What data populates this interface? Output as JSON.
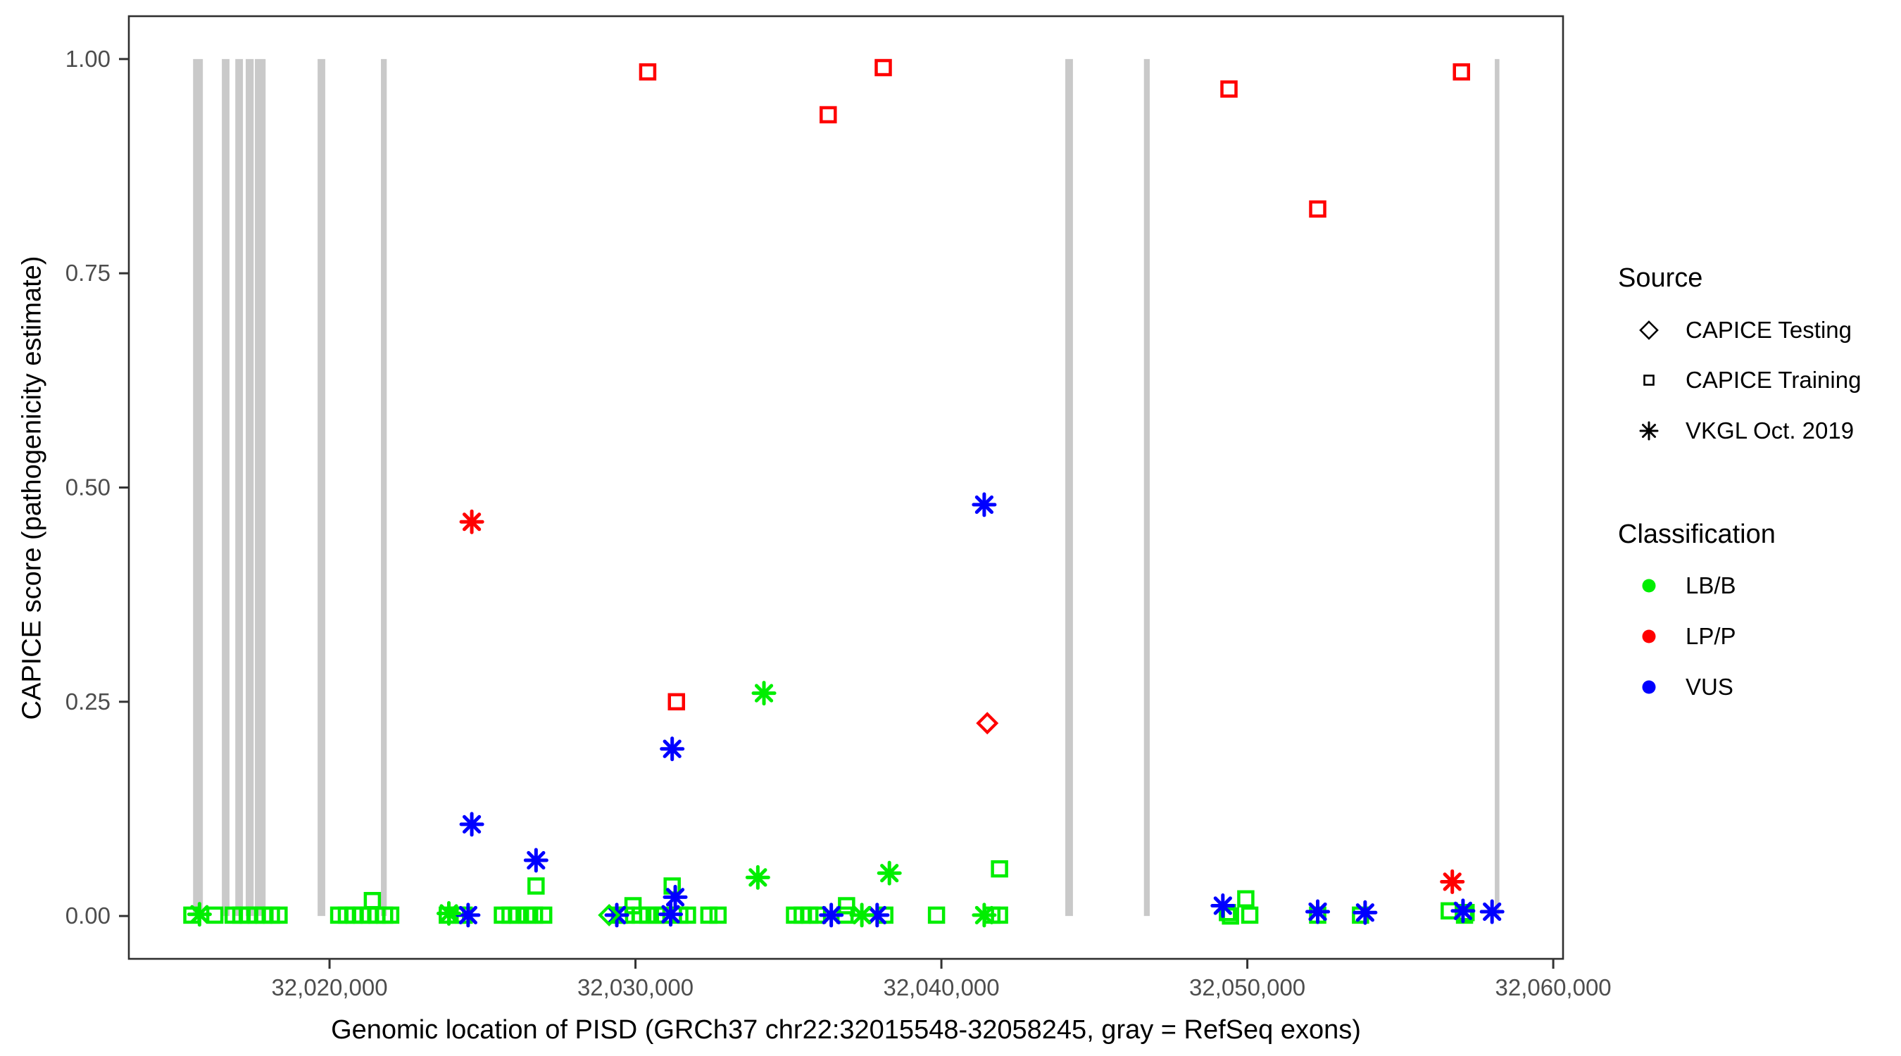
{
  "figure": {
    "x_axis_title": "Genomic location of PISD (GRCh37 chr22:32015548-32058245, gray = RefSeq exons)",
    "y_axis_title": "CAPICE score (pathogenicity estimate)"
  },
  "legend": {
    "source": {
      "title": "Source",
      "items": [
        {
          "label": "CAPICE Testing",
          "symbol": "diamond-outline"
        },
        {
          "label": "CAPICE Training",
          "symbol": "square-outline"
        },
        {
          "label": "VKGL Oct. 2019",
          "symbol": "asterisk"
        }
      ]
    },
    "classification": {
      "title": "Classification",
      "items": [
        {
          "label": "LB/B",
          "color": "#00EE00"
        },
        {
          "label": "LP/P",
          "color": "#FF0000"
        },
        {
          "label": "VUS",
          "color": "#0000FF"
        }
      ]
    }
  },
  "chart_data": {
    "type": "scatter",
    "title": "",
    "xlabel": "Genomic location of PISD (GRCh37 chr22:32015548-32058245, gray = RefSeq exons)",
    "ylabel": "CAPICE score (pathogenicity estimate)",
    "x_domain": [
      32013440,
      32060320
    ],
    "y_domain": [
      -0.05,
      1.05
    ],
    "grid": false,
    "legend_position": "right",
    "x_ticks": [
      {
        "value": 32020000,
        "label": "32,020,000"
      },
      {
        "value": 32030000,
        "label": "32,030,000"
      },
      {
        "value": 32040000,
        "label": "32,040,000"
      },
      {
        "value": 32050000,
        "label": "32,050,000"
      },
      {
        "value": 32060000,
        "label": "32,060,000"
      }
    ],
    "y_ticks": [
      {
        "value": 0.0,
        "label": "0.00"
      },
      {
        "value": 0.25,
        "label": "0.25"
      },
      {
        "value": 0.5,
        "label": "0.50"
      },
      {
        "value": 0.75,
        "label": "0.75"
      },
      {
        "value": 1.0,
        "label": "1.00"
      }
    ],
    "colors": {
      "LB/B": "#00EE00",
      "LP/P": "#FF0000",
      "VUS": "#0000FF",
      "exon": "#C9C9C9",
      "axis_text": "#4D4D4D",
      "panel_border": "#2F2F2F"
    },
    "exons": [
      {
        "start": 32015540,
        "end": 32015860
      },
      {
        "start": 32016480,
        "end": 32016730
      },
      {
        "start": 32016920,
        "end": 32017170
      },
      {
        "start": 32017260,
        "end": 32017520
      },
      {
        "start": 32017560,
        "end": 32017910
      },
      {
        "start": 32019610,
        "end": 32019860
      },
      {
        "start": 32021680,
        "end": 32021870
      },
      {
        "start": 32044050,
        "end": 32044300
      },
      {
        "start": 32046620,
        "end": 32046810
      },
      {
        "start": 32058090,
        "end": 32058240
      }
    ],
    "points": [
      {
        "x": 32030400,
        "y": 0.985,
        "src": "training",
        "cls": "LP/P"
      },
      {
        "x": 32036300,
        "y": 0.935,
        "src": "training",
        "cls": "LP/P"
      },
      {
        "x": 32038100,
        "y": 0.99,
        "src": "training",
        "cls": "LP/P"
      },
      {
        "x": 32049400,
        "y": 0.965,
        "src": "training",
        "cls": "LP/P"
      },
      {
        "x": 32052300,
        "y": 0.825,
        "src": "training",
        "cls": "LP/P"
      },
      {
        "x": 32057000,
        "y": 0.985,
        "src": "training",
        "cls": "LP/P"
      },
      {
        "x": 32031340,
        "y": 0.25,
        "src": "training",
        "cls": "LP/P"
      },
      {
        "x": 32041500,
        "y": 0.225,
        "src": "testing",
        "cls": "LP/P"
      },
      {
        "x": 32024650,
        "y": 0.46,
        "src": "vkgl",
        "cls": "LP/P"
      },
      {
        "x": 32056700,
        "y": 0.04,
        "src": "vkgl",
        "cls": "LP/P"
      },
      {
        "x": 32041400,
        "y": 0.48,
        "src": "vkgl",
        "cls": "VUS"
      },
      {
        "x": 32031200,
        "y": 0.195,
        "src": "vkgl",
        "cls": "VUS"
      },
      {
        "x": 32024650,
        "y": 0.107,
        "src": "vkgl",
        "cls": "VUS"
      },
      {
        "x": 32026750,
        "y": 0.065,
        "src": "vkgl",
        "cls": "VUS"
      },
      {
        "x": 32031300,
        "y": 0.022,
        "src": "vkgl",
        "cls": "VUS"
      },
      {
        "x": 32031150,
        "y": 0.002,
        "src": "vkgl",
        "cls": "VUS"
      },
      {
        "x": 32024530,
        "y": 0.001,
        "src": "vkgl",
        "cls": "VUS"
      },
      {
        "x": 32029390,
        "y": 0.001,
        "src": "vkgl",
        "cls": "VUS"
      },
      {
        "x": 32036400,
        "y": 0.001,
        "src": "vkgl",
        "cls": "VUS"
      },
      {
        "x": 32037900,
        "y": 0.001,
        "src": "vkgl",
        "cls": "VUS"
      },
      {
        "x": 32049200,
        "y": 0.012,
        "src": "vkgl",
        "cls": "VUS"
      },
      {
        "x": 32052300,
        "y": 0.005,
        "src": "vkgl",
        "cls": "VUS"
      },
      {
        "x": 32053850,
        "y": 0.004,
        "src": "vkgl",
        "cls": "VUS"
      },
      {
        "x": 32057050,
        "y": 0.006,
        "src": "vkgl",
        "cls": "VUS"
      },
      {
        "x": 32058000,
        "y": 0.005,
        "src": "vkgl",
        "cls": "VUS"
      },
      {
        "x": 32034200,
        "y": 0.26,
        "src": "vkgl",
        "cls": "LB/B"
      },
      {
        "x": 32034000,
        "y": 0.045,
        "src": "vkgl",
        "cls": "LB/B"
      },
      {
        "x": 32038300,
        "y": 0.05,
        "src": "vkgl",
        "cls": "LB/B"
      },
      {
        "x": 32015750,
        "y": 0.002,
        "src": "vkgl",
        "cls": "LB/B"
      },
      {
        "x": 32023900,
        "y": 0.003,
        "src": "vkgl",
        "cls": "LB/B"
      },
      {
        "x": 32037400,
        "y": 0.001,
        "src": "vkgl",
        "cls": "LB/B"
      },
      {
        "x": 32041400,
        "y": 0.001,
        "src": "vkgl",
        "cls": "LB/B"
      },
      {
        "x": 32029140,
        "y": 0.001,
        "src": "testing",
        "cls": "LB/B"
      },
      {
        "x": 32021400,
        "y": 0.018,
        "src": "training",
        "cls": "LB/B"
      },
      {
        "x": 32026750,
        "y": 0.035,
        "src": "training",
        "cls": "LB/B"
      },
      {
        "x": 32029920,
        "y": 0.012,
        "src": "training",
        "cls": "LB/B"
      },
      {
        "x": 32031200,
        "y": 0.035,
        "src": "training",
        "cls": "LB/B"
      },
      {
        "x": 32036900,
        "y": 0.012,
        "src": "training",
        "cls": "LB/B"
      },
      {
        "x": 32041900,
        "y": 0.055,
        "src": "training",
        "cls": "LB/B"
      },
      {
        "x": 32049950,
        "y": 0.02,
        "src": "training",
        "cls": "LB/B"
      },
      {
        "x": 32056600,
        "y": 0.006,
        "src": "training",
        "cls": "LB/B"
      },
      {
        "x": 32015500,
        "y": 0.001,
        "src": "training",
        "cls": "LB/B"
      },
      {
        "x": 32016250,
        "y": 0.001,
        "src": "training",
        "cls": "LB/B"
      },
      {
        "x": 32016850,
        "y": 0.001,
        "src": "training",
        "cls": "LB/B"
      },
      {
        "x": 32017100,
        "y": 0.001,
        "src": "training",
        "cls": "LB/B"
      },
      {
        "x": 32017350,
        "y": 0.001,
        "src": "training",
        "cls": "LB/B"
      },
      {
        "x": 32017600,
        "y": 0.001,
        "src": "training",
        "cls": "LB/B"
      },
      {
        "x": 32017850,
        "y": 0.001,
        "src": "training",
        "cls": "LB/B"
      },
      {
        "x": 32018100,
        "y": 0.001,
        "src": "training",
        "cls": "LB/B"
      },
      {
        "x": 32018350,
        "y": 0.001,
        "src": "training",
        "cls": "LB/B"
      },
      {
        "x": 32020300,
        "y": 0.001,
        "src": "training",
        "cls": "LB/B"
      },
      {
        "x": 32020550,
        "y": 0.001,
        "src": "training",
        "cls": "LB/B"
      },
      {
        "x": 32020800,
        "y": 0.001,
        "src": "training",
        "cls": "LB/B"
      },
      {
        "x": 32021050,
        "y": 0.001,
        "src": "training",
        "cls": "LB/B"
      },
      {
        "x": 32021300,
        "y": 0.001,
        "src": "training",
        "cls": "LB/B"
      },
      {
        "x": 32021550,
        "y": 0.001,
        "src": "training",
        "cls": "LB/B"
      },
      {
        "x": 32021800,
        "y": 0.001,
        "src": "training",
        "cls": "LB/B"
      },
      {
        "x": 32022000,
        "y": 0.001,
        "src": "training",
        "cls": "LB/B"
      },
      {
        "x": 32023850,
        "y": 0.001,
        "src": "training",
        "cls": "LB/B"
      },
      {
        "x": 32024150,
        "y": 0.001,
        "src": "training",
        "cls": "LB/B"
      },
      {
        "x": 32024400,
        "y": 0.001,
        "src": "training",
        "cls": "LB/B"
      },
      {
        "x": 32025650,
        "y": 0.001,
        "src": "training",
        "cls": "LB/B"
      },
      {
        "x": 32025900,
        "y": 0.001,
        "src": "training",
        "cls": "LB/B"
      },
      {
        "x": 32026150,
        "y": 0.001,
        "src": "training",
        "cls": "LB/B"
      },
      {
        "x": 32026450,
        "y": 0.001,
        "src": "training",
        "cls": "LB/B"
      },
      {
        "x": 32026700,
        "y": 0.001,
        "src": "training",
        "cls": "LB/B"
      },
      {
        "x": 32027000,
        "y": 0.001,
        "src": "training",
        "cls": "LB/B"
      },
      {
        "x": 32029480,
        "y": 0.001,
        "src": "training",
        "cls": "LB/B"
      },
      {
        "x": 32029700,
        "y": 0.001,
        "src": "training",
        "cls": "LB/B"
      },
      {
        "x": 32030150,
        "y": 0.001,
        "src": "training",
        "cls": "LB/B"
      },
      {
        "x": 32030400,
        "y": 0.001,
        "src": "training",
        "cls": "LB/B"
      },
      {
        "x": 32030700,
        "y": 0.001,
        "src": "training",
        "cls": "LB/B"
      },
      {
        "x": 32030950,
        "y": 0.001,
        "src": "training",
        "cls": "LB/B"
      },
      {
        "x": 32031450,
        "y": 0.001,
        "src": "training",
        "cls": "LB/B"
      },
      {
        "x": 32031700,
        "y": 0.001,
        "src": "training",
        "cls": "LB/B"
      },
      {
        "x": 32032400,
        "y": 0.001,
        "src": "training",
        "cls": "LB/B"
      },
      {
        "x": 32032700,
        "y": 0.001,
        "src": "training",
        "cls": "LB/B"
      },
      {
        "x": 32035200,
        "y": 0.001,
        "src": "training",
        "cls": "LB/B"
      },
      {
        "x": 32035450,
        "y": 0.001,
        "src": "training",
        "cls": "LB/B"
      },
      {
        "x": 32035700,
        "y": 0.001,
        "src": "training",
        "cls": "LB/B"
      },
      {
        "x": 32035950,
        "y": 0.001,
        "src": "training",
        "cls": "LB/B"
      },
      {
        "x": 32036850,
        "y": 0.001,
        "src": "training",
        "cls": "LB/B"
      },
      {
        "x": 32038150,
        "y": 0.001,
        "src": "training",
        "cls": "LB/B"
      },
      {
        "x": 32039840,
        "y": 0.001,
        "src": "training",
        "cls": "LB/B"
      },
      {
        "x": 32041650,
        "y": 0.001,
        "src": "training",
        "cls": "LB/B"
      },
      {
        "x": 32041900,
        "y": 0.001,
        "src": "training",
        "cls": "LB/B"
      },
      {
        "x": 32049350,
        "y": 0.004,
        "src": "training",
        "cls": "LB/B"
      },
      {
        "x": 32049450,
        "y": 0.0,
        "src": "training",
        "cls": "LB/B"
      },
      {
        "x": 32050080,
        "y": 0.001,
        "src": "training",
        "cls": "LB/B"
      },
      {
        "x": 32052300,
        "y": 0.001,
        "src": "training",
        "cls": "LB/B"
      },
      {
        "x": 32053700,
        "y": 0.001,
        "src": "training",
        "cls": "LB/B"
      },
      {
        "x": 32057100,
        "y": 0.001,
        "src": "training",
        "cls": "LB/B"
      },
      {
        "x": 32057150,
        "y": 0.004,
        "src": "training",
        "cls": "LB/B"
      }
    ]
  }
}
